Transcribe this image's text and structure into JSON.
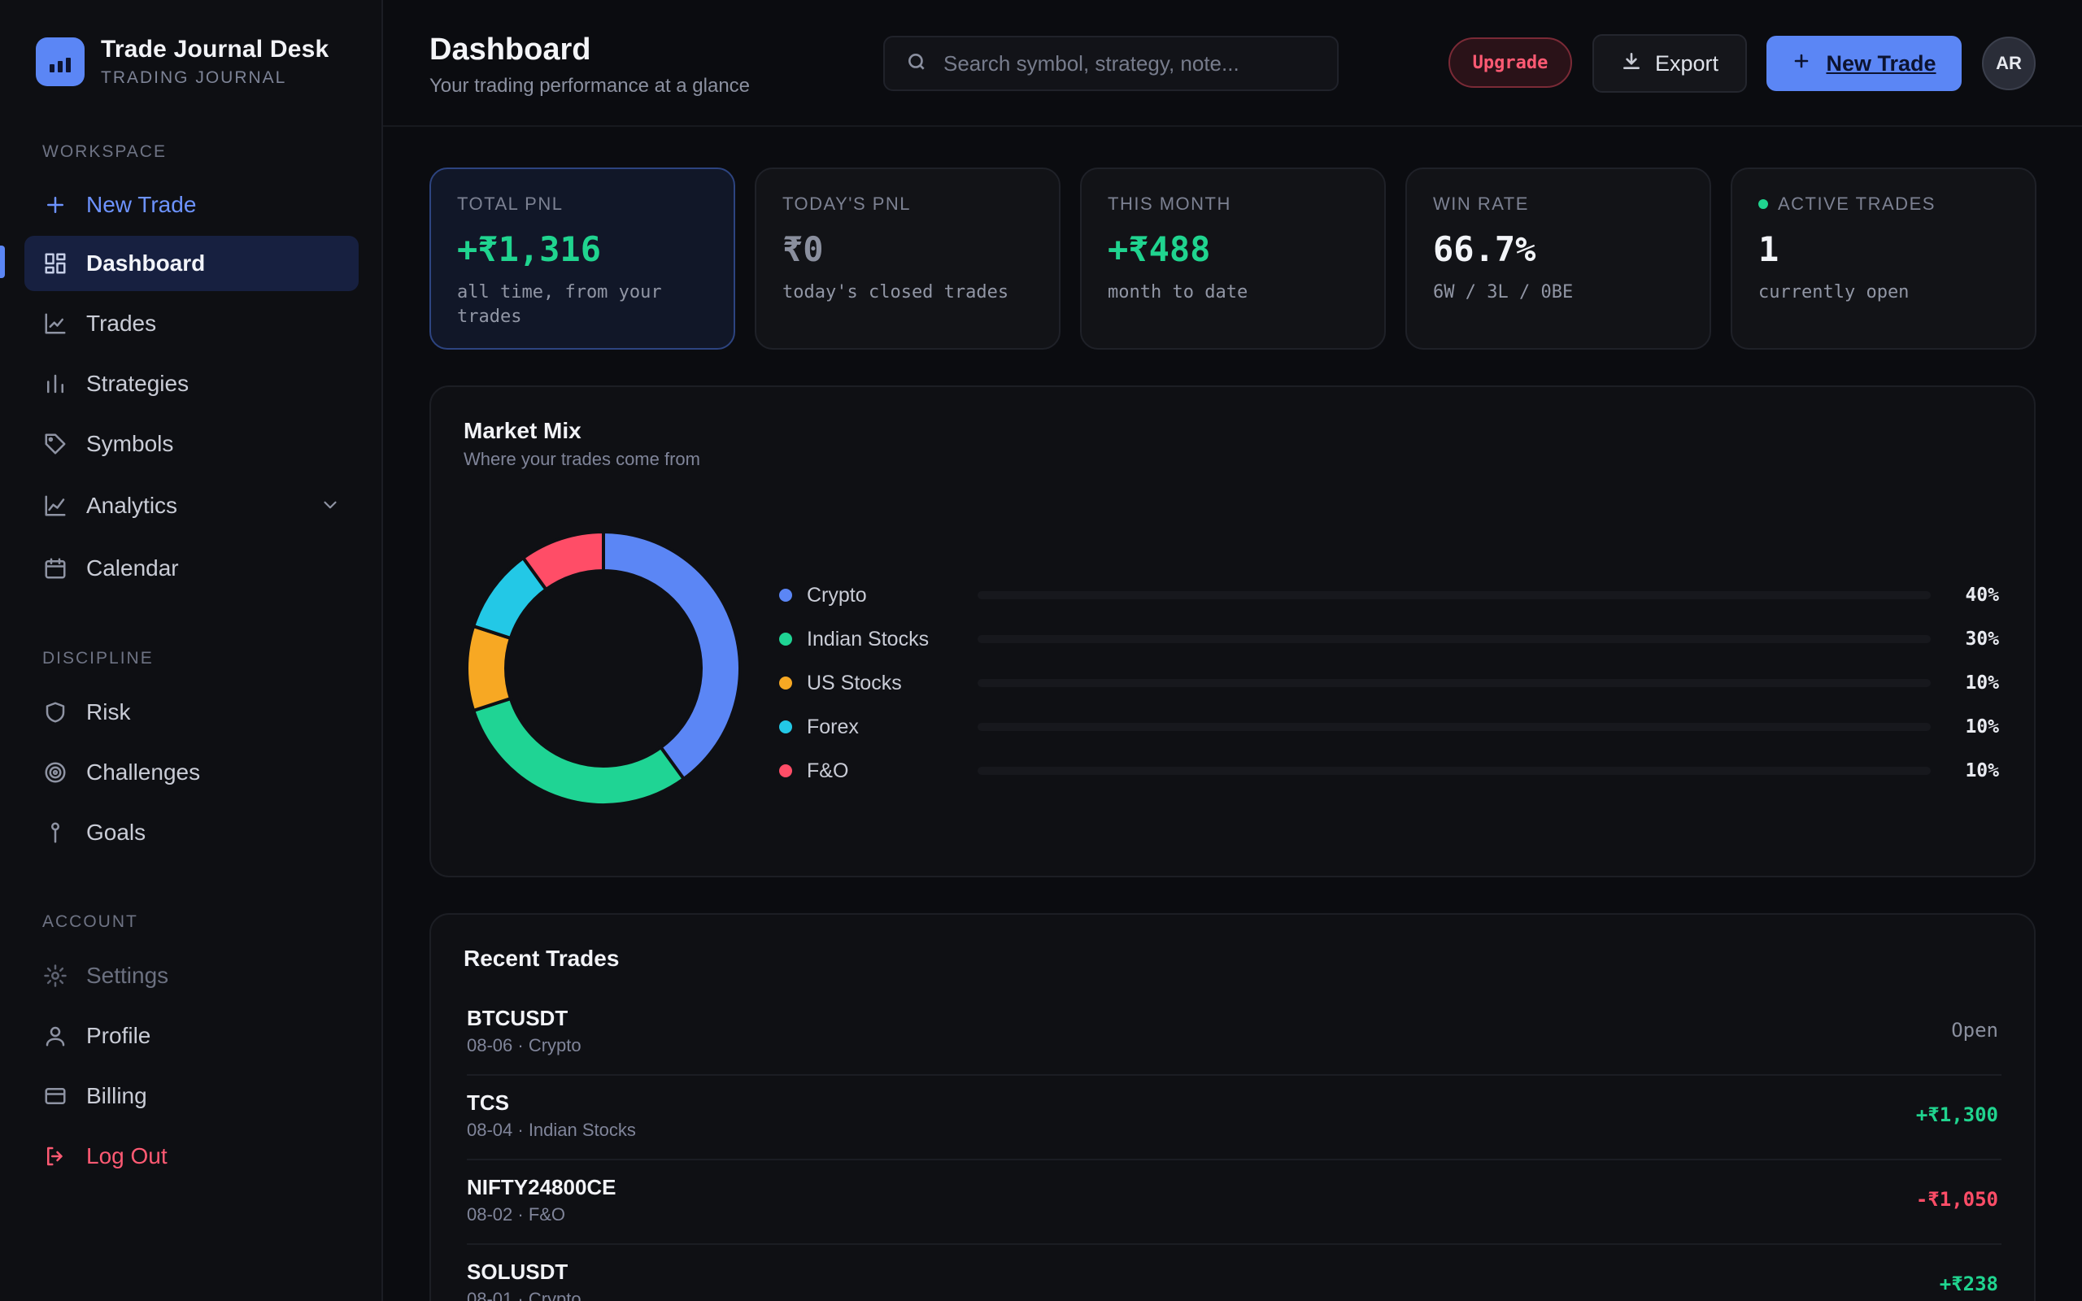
{
  "brand": {
    "title": "Trade Journal Desk",
    "subtitle": "TRADING JOURNAL"
  },
  "sidebar": {
    "sections": [
      {
        "label": "WORKSPACE"
      },
      {
        "label": "DISCIPLINE"
      },
      {
        "label": "ACCOUNT"
      }
    ],
    "items": [
      {
        "label": "New Trade",
        "icon": "plus-icon"
      },
      {
        "label": "Dashboard",
        "icon": "grid-icon"
      },
      {
        "label": "Trades",
        "icon": "line-chart-icon"
      },
      {
        "label": "Strategies",
        "icon": "bars-icon"
      },
      {
        "label": "Symbols",
        "icon": "tag-icon"
      },
      {
        "label": "Analytics",
        "icon": "trend-icon"
      },
      {
        "label": "Calendar",
        "icon": "calendar-icon"
      },
      {
        "label": "Risk",
        "icon": "shield-icon"
      },
      {
        "label": "Challenges",
        "icon": "target-icon"
      },
      {
        "label": "Goals",
        "icon": "pin-icon"
      },
      {
        "label": "Settings",
        "icon": "gear-icon"
      },
      {
        "label": "Profile",
        "icon": "user-icon"
      },
      {
        "label": "Billing",
        "icon": "card-icon"
      },
      {
        "label": "Log Out",
        "icon": "logout-icon"
      }
    ]
  },
  "header": {
    "title": "Dashboard",
    "subtitle": "Your trading performance at a glance",
    "search_placeholder": "Search symbol, strategy, note...",
    "upgrade_label": "Upgrade",
    "export_label": "Export",
    "new_trade_label": "New Trade",
    "avatar_initials": "AR"
  },
  "stats": [
    {
      "label": "TOTAL PNL",
      "value": "+₹1,316",
      "note": "all time, from your trades"
    },
    {
      "label": "TODAY'S PNL",
      "value": "₹0",
      "note": "today's closed trades"
    },
    {
      "label": "THIS MONTH",
      "value": "+₹488",
      "note": "month to date"
    },
    {
      "label": "WIN RATE",
      "value": "66.7%",
      "note": "6W / 3L / 0BE"
    },
    {
      "label": "ACTIVE TRADES",
      "value": "1",
      "note": "currently open"
    }
  ],
  "market_mix": {
    "title": "Market Mix",
    "subtitle": "Where your trades come from"
  },
  "chart_data": {
    "type": "pie",
    "categories": [
      "Crypto",
      "Indian Stocks",
      "US Stocks",
      "Forex",
      "F&O"
    ],
    "values": [
      40,
      30,
      10,
      10,
      10
    ],
    "value_labels": [
      "40%",
      "30%",
      "10%",
      "10%",
      "10%"
    ],
    "colors": [
      "#5b86f5",
      "#1fd494",
      "#f7a823",
      "#23c8e6",
      "#ff4d67"
    ],
    "legend": "right"
  },
  "recent_trades": {
    "title": "Recent Trades",
    "rows": [
      {
        "symbol": "BTCUSDT",
        "meta": "08-06 · Crypto",
        "pnl": "Open",
        "status": "open"
      },
      {
        "symbol": "TCS",
        "meta": "08-04 · Indian Stocks",
        "pnl": "+₹1,300",
        "status": "win"
      },
      {
        "symbol": "NIFTY24800CE",
        "meta": "08-02 · F&O",
        "pnl": "-₹1,050",
        "status": "loss"
      },
      {
        "symbol": "SOLUSDT",
        "meta": "08-01 · Crypto",
        "pnl": "+₹238",
        "status": "win"
      }
    ]
  },
  "colors": {
    "accent": "#5b86f5",
    "positive": "#20d48f",
    "negative": "#ff4d67",
    "background": "#0b0c10"
  }
}
